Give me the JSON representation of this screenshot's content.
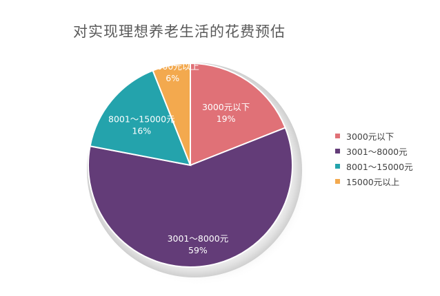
{
  "chart_data": {
    "type": "pie",
    "title": "对实现理想养老生活的花费预估",
    "categories": [
      "3000元以下",
      "3001～8000元",
      "8001～15000元",
      "15000元以上"
    ],
    "values": [
      19,
      59,
      16,
      6
    ],
    "value_labels": [
      "19%",
      "59%",
      "16%",
      "6%"
    ],
    "colors": [
      "#E07177",
      "#633C78",
      "#24A3AC",
      "#F3A94E"
    ],
    "legend_position": "right",
    "start_angle": "12 o'clock, clockwise"
  }
}
